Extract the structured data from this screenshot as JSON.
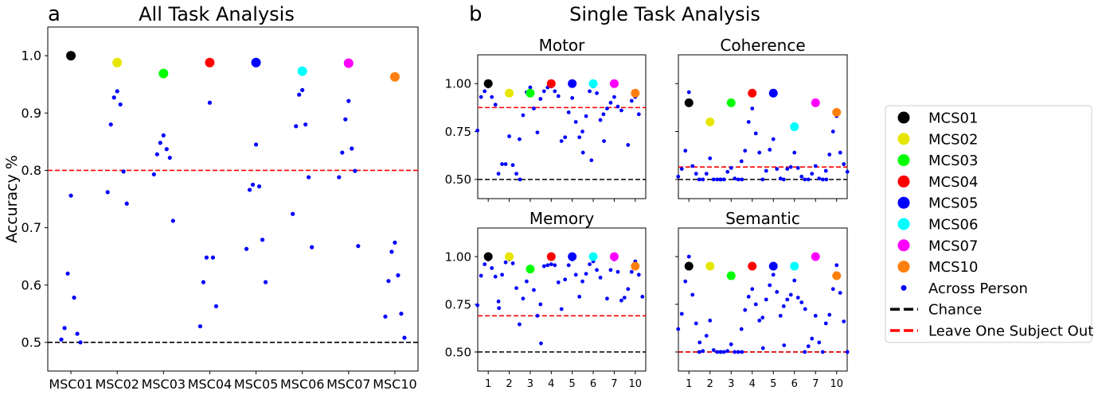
{
  "figure": {
    "label_a": "a",
    "label_b": "b",
    "title_a": "All Task Analysis",
    "title_b": "Single Task Analysis"
  },
  "legend": {
    "items": [
      {
        "label": "MCS01",
        "color": "#000000",
        "kind": "big"
      },
      {
        "label": "MCS02",
        "color": "#e6e600",
        "kind": "big"
      },
      {
        "label": "MCS03",
        "color": "#00ff00",
        "kind": "big"
      },
      {
        "label": "MCS04",
        "color": "#ff0000",
        "kind": "big"
      },
      {
        "label": "MCS05",
        "color": "#0000ff",
        "kind": "big"
      },
      {
        "label": "MCS06",
        "color": "#00ffff",
        "kind": "big"
      },
      {
        "label": "MCS07",
        "color": "#ff00ff",
        "kind": "big"
      },
      {
        "label": "MCS10",
        "color": "#ff7f0e",
        "kind": "big"
      },
      {
        "label": "Across Person",
        "color": "#0000ff",
        "kind": "small"
      },
      {
        "label": "Chance",
        "color": "#000000",
        "kind": "dash"
      },
      {
        "label": "Leave One Subject Out",
        "color": "#ff0000",
        "kind": "dash"
      }
    ]
  },
  "chart_data": [
    {
      "id": "all",
      "type": "scatter",
      "title": "All Task Analysis",
      "ylabel": "Accuracy %",
      "categories": [
        "MSC01",
        "MSC02",
        "MSC03",
        "MSC04",
        "MSC05",
        "MSC06",
        "MSC07",
        "MSC10"
      ],
      "ylim": [
        0.45,
        1.05
      ],
      "yticks": [
        0.5,
        0.6,
        0.7,
        0.8,
        0.9,
        1.0
      ],
      "ytick_labels": [
        "0.5",
        "0.6",
        "0.7",
        "0.8",
        "0.9",
        "1.0"
      ],
      "chance": 0.5,
      "loso": 0.8,
      "subject_colors": [
        "#000000",
        "#e6e600",
        "#00ff00",
        "#ff0000",
        "#0000ff",
        "#00ffff",
        "#ff00ff",
        "#ff7f0e"
      ],
      "within": [
        1.0,
        0.988,
        0.969,
        0.988,
        0.988,
        0.973,
        0.987,
        0.963
      ],
      "across": [
        [
          0.756,
          0.62,
          0.578,
          0.525,
          0.515,
          0.505,
          0.5
        ],
        [
          0.938,
          0.927,
          0.915,
          0.88,
          0.798,
          0.762,
          0.742
        ],
        [
          0.861,
          0.848,
          0.837,
          0.828,
          0.822,
          0.793,
          0.712
        ],
        [
          0.918,
          0.648,
          0.648,
          0.605,
          0.563,
          0.528
        ],
        [
          0.845,
          0.775,
          0.772,
          0.766,
          0.679,
          0.663,
          0.605
        ],
        [
          0.94,
          0.932,
          0.88,
          0.877,
          0.788,
          0.724,
          0.666
        ],
        [
          0.921,
          0.889,
          0.838,
          0.831,
          0.799,
          0.788,
          0.668
        ],
        [
          0.674,
          0.658,
          0.617,
          0.607,
          0.55,
          0.545,
          0.508
        ]
      ]
    },
    {
      "id": "motor",
      "type": "scatter",
      "title": "Motor",
      "categories": [
        "1",
        "2",
        "3",
        "4",
        "5",
        "6",
        "7",
        "10"
      ],
      "ylim": [
        0.4,
        1.15
      ],
      "yticks": [
        0.5,
        0.75,
        1.0
      ],
      "ytick_labels": [
        "0.50",
        "0.75",
        "1.00"
      ],
      "chance": 0.5,
      "loso": 0.875,
      "within": [
        1.0,
        0.95,
        0.95,
        1.0,
        1.0,
        1.0,
        1.0,
        0.95
      ],
      "across": [
        [
          0.985,
          0.96,
          0.93,
          0.93,
          0.89,
          0.755
        ],
        [
          0.725,
          0.58,
          0.575,
          0.58,
          0.53,
          0.53,
          0.5
        ],
        [
          0.98,
          0.955,
          0.87,
          0.835,
          0.745,
          0.71
        ],
        [
          0.985,
          0.98,
          0.96,
          0.96,
          0.935,
          0.92
        ],
        [
          0.925,
          0.85,
          0.8,
          0.72,
          0.72,
          0.7,
          0.64
        ],
        [
          0.985,
          0.96,
          0.95,
          0.83,
          0.81,
          0.75,
          0.7,
          0.6
        ],
        [
          0.93,
          0.9,
          0.88,
          0.87,
          0.86,
          0.84
        ],
        [
          0.93,
          0.91,
          0.84,
          0.68
        ]
      ]
    },
    {
      "id": "coherence",
      "type": "scatter",
      "title": "Coherence",
      "categories": [
        "1",
        "2",
        "3",
        "4",
        "5",
        "6",
        "7",
        "10"
      ],
      "ylim": [
        0.4,
        1.15
      ],
      "yticks": [
        0.5,
        0.75,
        1.0
      ],
      "ytick_labels": [
        "0.50",
        "0.75",
        "1.00"
      ],
      "chance": 0.5,
      "loso": 0.565,
      "within": [
        0.9,
        0.8,
        0.9,
        0.95,
        0.95,
        0.775,
        0.9,
        0.85
      ],
      "across": [
        [
          0.955,
          0.65,
          0.57,
          0.555,
          0.53,
          0.515
        ],
        [
          0.61,
          0.53,
          0.5,
          0.5,
          0.5,
          0.5,
          0.5
        ],
        [
          0.56,
          0.54,
          0.505,
          0.5,
          0.5,
          0.5,
          0.5
        ],
        [
          0.87,
          0.8,
          0.74,
          0.65,
          0.64,
          0.595
        ],
        [
          0.71,
          0.655,
          0.555,
          0.545,
          0.505,
          0.5
        ],
        [
          0.64,
          0.565,
          0.56,
          0.555,
          0.515,
          0.5
        ],
        [
          0.57,
          0.53,
          0.505,
          0.5,
          0.5,
          0.5,
          0.5
        ],
        [
          0.83,
          0.75,
          0.64,
          0.63,
          0.58,
          0.545,
          0.54
        ]
      ]
    },
    {
      "id": "memory",
      "type": "scatter",
      "title": "Memory",
      "categories": [
        "1",
        "2",
        "3",
        "4",
        "5",
        "6",
        "7",
        "10"
      ],
      "ylim": [
        0.4,
        1.15
      ],
      "yticks": [
        0.5,
        0.75,
        1.0
      ],
      "ytick_labels": [
        "0.50",
        "0.75",
        "1.00"
      ],
      "chance": 0.5,
      "loso": 0.69,
      "within": [
        1.0,
        1.0,
        0.935,
        1.0,
        1.0,
        1.0,
        1.0,
        0.95
      ],
      "across": [
        [
          0.985,
          0.96,
          0.94,
          0.9,
          0.895,
          0.745,
          0.73
        ],
        [
          0.985,
          0.97,
          0.965,
          0.905,
          0.835,
          0.765
        ],
        [
          0.925,
          0.87,
          0.825,
          0.78,
          0.69,
          0.645,
          0.545
        ],
        [
          0.96,
          0.955,
          0.955,
          0.95,
          0.865,
          0.75
        ],
        [
          0.985,
          0.955,
          0.905,
          0.88,
          0.79,
          0.725
        ],
        [
          0.975,
          0.96,
          0.93,
          0.91,
          0.89,
          0.87
        ],
        [
          0.985,
          0.93,
          0.92,
          0.78,
          0.77
        ],
        [
          0.975,
          0.92,
          0.905,
          0.83,
          0.79,
          0.785
        ]
      ]
    },
    {
      "id": "semantic",
      "type": "scatter",
      "title": "Semantic",
      "categories": [
        "1",
        "2",
        "3",
        "4",
        "5",
        "6",
        "7",
        "10"
      ],
      "ylim": [
        0.4,
        1.15
      ],
      "yticks": [
        0.5,
        0.75,
        1.0
      ],
      "ytick_labels": [
        "0.50",
        "0.75",
        "1.00"
      ],
      "chance": 0.5,
      "loso": 0.5,
      "within": [
        0.95,
        0.95,
        0.9,
        0.95,
        0.95,
        0.95,
        1.0,
        0.9
      ],
      "across": [
        [
          1.0,
          0.87,
          0.8,
          0.7,
          0.65,
          0.62,
          0.55
        ],
        [
          0.665,
          0.585,
          0.51,
          0.505,
          0.5,
          0.5,
          0.5
        ],
        [
          0.54,
          0.505,
          0.5,
          0.5,
          0.5,
          0.5,
          0.5
        ],
        [
          0.83,
          0.79,
          0.75,
          0.72,
          0.665,
          0.62,
          0.52
        ],
        [
          0.905,
          0.85,
          0.815,
          0.775,
          0.69,
          0.68,
          0.535
        ],
        [
          0.875,
          0.8,
          0.785,
          0.775,
          0.76,
          0.74,
          0.725
        ],
        [
          0.69,
          0.57,
          0.55,
          0.53,
          0.5,
          0.5
        ],
        [
          0.955,
          0.83,
          0.81,
          0.695,
          0.66,
          0.65,
          0.5
        ]
      ]
    }
  ]
}
